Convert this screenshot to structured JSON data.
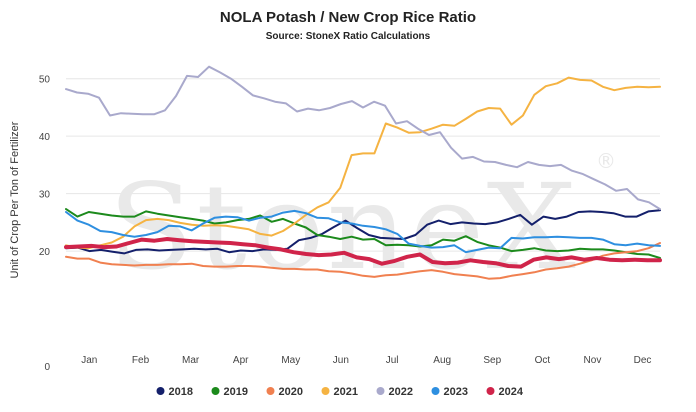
{
  "chart_data": {
    "type": "line",
    "title": "NOLA Potash / New Crop Rice Ratio",
    "subtitle": "Source: StoneX Ratio Calculations",
    "ylabel": "Unit of Crop Per Ton of Fertilizer",
    "xlabel": "",
    "watermark": "StoneX",
    "watermark_mark": "®",
    "ylim": [
      0,
      55
    ],
    "yticks": [
      0,
      20,
      30,
      40,
      50
    ],
    "xlim": [
      0,
      51
    ],
    "x_ticks": [
      {
        "label": "Jan",
        "week": 2
      },
      {
        "label": "Feb",
        "week": 6.4
      },
      {
        "label": "Mar",
        "week": 10.7
      },
      {
        "label": "Apr",
        "week": 15
      },
      {
        "label": "May",
        "week": 19.3
      },
      {
        "label": "Jun",
        "week": 23.6
      },
      {
        "label": "Jul",
        "week": 28
      },
      {
        "label": "Aug",
        "week": 32.3
      },
      {
        "label": "Sep",
        "week": 36.6
      },
      {
        "label": "Oct",
        "week": 40.9
      },
      {
        "label": "Nov",
        "week": 45.2
      },
      {
        "label": "Dec",
        "week": 49.5
      }
    ],
    "grid": true,
    "legend_position": "bottom",
    "series": [
      {
        "name": "2018",
        "color": "#14206b",
        "width": 2,
        "values": [
          20.5,
          20.6,
          20.0,
          20.2,
          19.9,
          19.6,
          20.2,
          20.3,
          20.1,
          20.2,
          20.3,
          20.4,
          20.3,
          20.4,
          19.8,
          20.1,
          20.0,
          20.3,
          20.2,
          20.4,
          21.9,
          22.3,
          23.0,
          24.2,
          25.3,
          24.0,
          22.8,
          22.3,
          22.2,
          22.1,
          22.8,
          24.6,
          25.3,
          24.7,
          25.0,
          24.8,
          24.7,
          25.0,
          25.6,
          26.3,
          24.6,
          26.0,
          25.6,
          26.0,
          26.8,
          26.9,
          26.8,
          26.6,
          26.0,
          26.0,
          26.9,
          27.1
        ]
      },
      {
        "name": "2019",
        "color": "#1c8a1c",
        "width": 2,
        "values": [
          27.3,
          26.0,
          26.8,
          26.5,
          26.2,
          26.0,
          26.0,
          26.9,
          26.5,
          26.2,
          25.9,
          25.6,
          25.3,
          24.8,
          25.0,
          25.4,
          25.6,
          26.2,
          25.1,
          25.6,
          24.8,
          24.1,
          22.8,
          22.5,
          22.1,
          22.5,
          22.0,
          22.1,
          21.0,
          21.1,
          21.0,
          20.8,
          21.0,
          22.0,
          21.8,
          22.6,
          21.6,
          21.0,
          20.6,
          20.0,
          20.2,
          20.5,
          20.1,
          20.0,
          20.1,
          20.4,
          20.3,
          20.3,
          20.1,
          19.8,
          19.5,
          19.4,
          18.8
        ]
      },
      {
        "name": "2020",
        "color": "#f08050",
        "width": 2,
        "values": [
          19.0,
          18.7,
          18.7,
          18.0,
          17.7,
          17.6,
          17.5,
          17.6,
          17.6,
          17.7,
          17.7,
          17.8,
          17.4,
          17.3,
          17.3,
          17.4,
          17.4,
          17.3,
          17.1,
          16.9,
          16.9,
          16.8,
          16.8,
          16.5,
          16.4,
          16.1,
          15.7,
          15.5,
          15.8,
          15.9,
          16.2,
          16.5,
          16.7,
          16.4,
          16.0,
          15.8,
          15.6,
          15.2,
          15.3,
          15.7,
          16.0,
          16.3,
          16.8,
          17.0,
          17.3,
          17.8,
          18.4,
          19.2,
          19.6,
          19.8,
          20.0,
          20.5,
          21.4
        ]
      },
      {
        "name": "2021",
        "color": "#f5b342",
        "width": 2,
        "values": [
          21.0,
          20.6,
          20.5,
          21.0,
          21.5,
          22.5,
          24.3,
          25.4,
          25.6,
          25.4,
          24.9,
          24.6,
          24.4,
          24.5,
          24.4,
          24.1,
          23.8,
          23.0,
          22.7,
          23.5,
          24.8,
          26.3,
          27.6,
          28.5,
          31.0,
          36.7,
          37.0,
          37.0,
          42.2,
          41.5,
          40.6,
          40.7,
          41.3,
          42.0,
          41.8,
          43.0,
          44.3,
          44.9,
          44.8,
          42.0,
          43.6,
          47.2,
          48.7,
          49.2,
          50.2,
          49.8,
          49.7,
          48.6,
          48.0,
          48.4,
          48.6,
          48.5,
          48.6
        ]
      },
      {
        "name": "2022",
        "color": "#a9a9cc",
        "width": 2,
        "values": [
          48.2,
          47.6,
          47.4,
          46.7,
          43.6,
          44.0,
          43.9,
          43.8,
          43.8,
          44.5,
          47.0,
          50.5,
          50.3,
          52.1,
          51.1,
          50.0,
          48.6,
          47.1,
          46.6,
          46.0,
          45.7,
          44.3,
          44.8,
          44.5,
          44.9,
          45.6,
          46.1,
          45.0,
          46.0,
          45.3,
          42.2,
          42.6,
          41.3,
          40.2,
          40.7,
          38.0,
          36.1,
          36.4,
          35.6,
          35.5,
          35.0,
          34.6,
          35.5,
          35.0,
          34.8,
          35.0,
          34.0,
          33.4,
          32.5,
          31.6,
          30.5,
          30.8,
          29.0,
          28.5,
          27.3
        ]
      },
      {
        "name": "2023",
        "color": "#2e8fe0",
        "width": 2,
        "values": [
          26.8,
          25.3,
          24.6,
          23.5,
          23.3,
          22.8,
          22.5,
          22.8,
          23.3,
          24.4,
          24.3,
          23.6,
          24.8,
          25.8,
          26.0,
          25.9,
          25.3,
          25.8,
          26.0,
          26.7,
          27.0,
          26.6,
          25.8,
          25.7,
          25.0,
          24.8,
          24.4,
          24.2,
          23.8,
          23.0,
          21.3,
          20.9,
          20.6,
          20.7,
          21.0,
          19.8,
          20.2,
          20.6,
          20.5,
          22.3,
          22.2,
          22.4,
          22.4,
          22.5,
          22.4,
          22.3,
          22.3,
          22.0,
          21.2,
          21.0,
          21.3,
          21.0,
          20.9
        ]
      },
      {
        "name": "2024",
        "color": "#d0244a",
        "width": 4,
        "values": [
          20.7,
          20.8,
          20.9,
          20.7,
          20.8,
          21.4,
          22.0,
          21.8,
          22.1,
          21.9,
          21.7,
          21.6,
          21.5,
          21.4,
          21.2,
          21.0,
          20.6,
          20.3,
          19.8,
          19.5,
          19.3,
          19.4,
          19.7,
          18.9,
          18.6,
          17.8,
          18.3,
          19.0,
          19.4,
          18.1,
          17.9,
          18.0,
          18.4,
          18.1,
          17.9,
          17.4,
          17.3,
          18.5,
          18.9,
          18.6,
          18.9,
          18.5,
          18.8,
          18.5,
          18.4,
          18.5,
          18.4,
          18.4
        ]
      }
    ]
  }
}
